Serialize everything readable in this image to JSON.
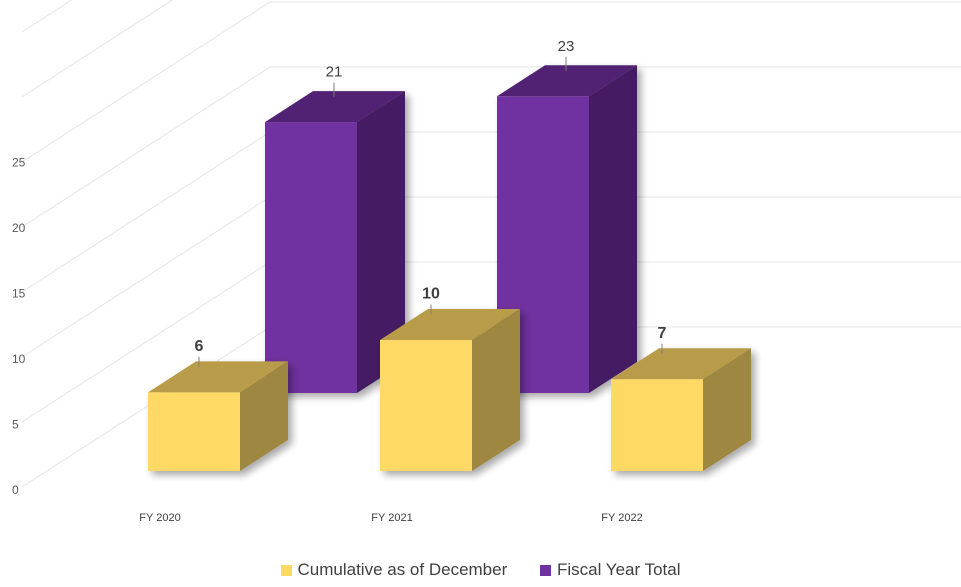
{
  "chart_data": {
    "type": "bar",
    "categories": [
      "FY 2020",
      "FY 2021",
      "FY 2022"
    ],
    "series": [
      {
        "name": "Cumulative as of December",
        "values": [
          6,
          10,
          7
        ],
        "color": "#FFD966"
      },
      {
        "name": "Fiscal Year Total",
        "values": [
          21,
          null,
          23
        ],
        "color": "#7030A0"
      }
    ],
    "data_labels": {
      "Cumulative as of December": [
        "6",
        "10",
        "7"
      ],
      "Fiscal Year Total": [
        "21",
        "",
        "23"
      ]
    },
    "y_ticks": [
      "0",
      "5",
      "10",
      "15",
      "20",
      "25"
    ],
    "ylim": [
      0,
      25
    ],
    "grid": true,
    "legend_position": "bottom",
    "style": "3d-clustered-column"
  }
}
